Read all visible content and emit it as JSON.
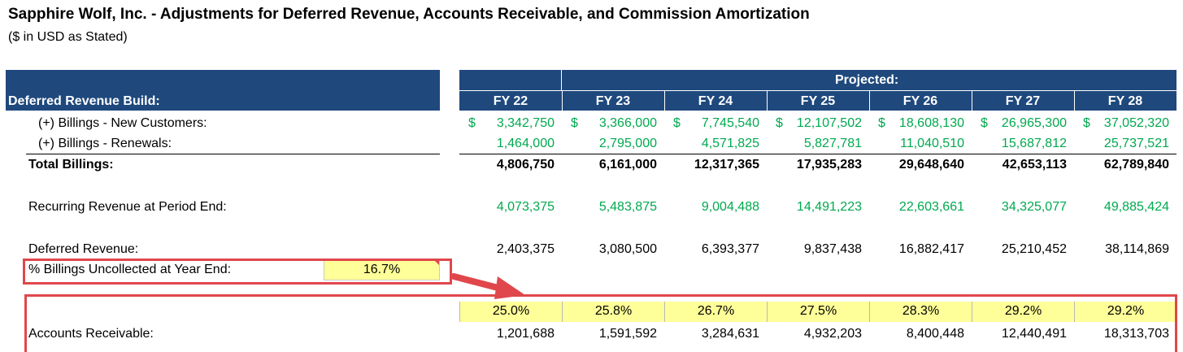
{
  "title": "Sapphire Wolf, Inc. - Adjustments for Deferred Revenue, Accounts Receivable, and Commission Amortization",
  "subtitle": "($ in USD as Stated)",
  "header": {
    "section_label": "Deferred Revenue Build:",
    "projected_label": "Projected:",
    "years": [
      "FY 22",
      "FY 23",
      "FY 24",
      "FY 25",
      "FY 26",
      "FY 27",
      "FY 28"
    ]
  },
  "rows": {
    "new_customers": {
      "label": "(+) Billings - New Customers:",
      "currency_symbol": "$",
      "values": [
        "3,342,750",
        "3,366,000",
        "7,745,540",
        "12,107,502",
        "18,608,130",
        "26,965,300",
        "37,052,320"
      ]
    },
    "renewals": {
      "label": "(+) Billings - Renewals:",
      "values": [
        "1,464,000",
        "2,795,000",
        "4,571,825",
        "5,827,781",
        "11,040,510",
        "15,687,812",
        "25,737,521"
      ]
    },
    "total_billings": {
      "label": "Total Billings:",
      "values": [
        "4,806,750",
        "6,161,000",
        "12,317,365",
        "17,935,283",
        "29,648,640",
        "42,653,113",
        "62,789,840"
      ]
    },
    "recurring_revenue": {
      "label": "Recurring Revenue at Period End:",
      "values": [
        "4,073,375",
        "5,483,875",
        "9,004,488",
        "14,491,223",
        "22,603,661",
        "34,325,077",
        "49,885,424"
      ]
    },
    "deferred_revenue": {
      "label": "Deferred Revenue:",
      "values": [
        "2,403,375",
        "3,080,500",
        "6,393,377",
        "9,837,438",
        "16,882,417",
        "25,210,452",
        "38,114,869"
      ]
    },
    "pct_uncollected": {
      "label": "% Billings Uncollected at Year End:",
      "value": "16.7%"
    },
    "ar_pct": {
      "values": [
        "25.0%",
        "25.8%",
        "26.7%",
        "27.5%",
        "28.3%",
        "29.2%",
        "29.2%"
      ]
    },
    "accounts_receivable": {
      "label": "Accounts Receivable:",
      "values": [
        "1,201,688",
        "1,591,592",
        "3,284,631",
        "4,932,203",
        "8,400,448",
        "12,440,491",
        "18,313,703"
      ]
    }
  },
  "colors": {
    "header_band": "#1f497d",
    "input_green": "#00a94f",
    "highlight_yellow": "#ffff99",
    "callout_red": "#e0474c"
  }
}
